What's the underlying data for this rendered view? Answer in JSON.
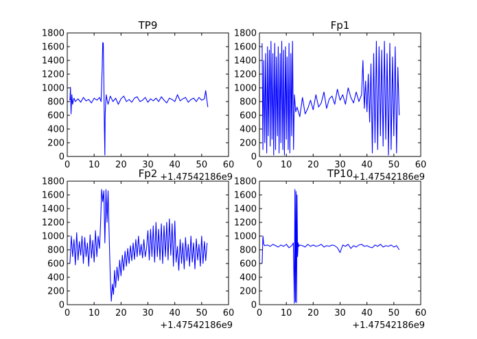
{
  "chart_data": [
    {
      "type": "line",
      "title": "TP9",
      "x_offset_label": "+1.47542186e9",
      "xlim": [
        0,
        60
      ],
      "ylim": [
        0,
        1800
      ],
      "xticks": [
        0,
        10,
        20,
        30,
        40,
        50,
        60
      ],
      "yticks": [
        0,
        200,
        400,
        600,
        800,
        1000,
        1200,
        1400,
        1600,
        1800
      ],
      "series": [
        {
          "name": "TP9",
          "color": "#0000ff",
          "x": [
            1.0,
            1.2,
            1.4,
            1.7,
            2.0,
            2.5,
            3,
            4,
            5,
            6,
            7,
            8,
            9,
            10,
            11,
            12,
            12.6,
            13.0,
            13.2,
            13.4,
            13.6,
            13.8,
            14.0,
            14.1,
            14.3,
            14.5,
            14.8,
            15.2,
            16,
            17,
            18,
            19,
            20,
            21,
            22,
            23,
            24,
            25,
            26,
            27,
            28,
            29,
            30,
            31,
            32,
            33,
            34,
            35,
            36,
            37,
            38,
            39,
            40,
            41,
            42,
            43,
            44,
            45,
            46,
            47,
            48,
            49,
            50,
            51,
            51.5,
            52,
            52.3
          ],
          "y": [
            820,
            1010,
            620,
            900,
            760,
            850,
            800,
            840,
            790,
            860,
            810,
            830,
            780,
            850,
            820,
            860,
            800,
            1300,
            1660,
            1650,
            1100,
            400,
            20,
            600,
            780,
            900,
            820,
            760,
            880,
            800,
            850,
            760,
            840,
            880,
            800,
            830,
            790,
            850,
            870,
            800,
            820,
            860,
            790,
            840,
            810,
            850,
            800,
            870,
            820,
            780,
            850,
            830,
            800,
            900,
            810,
            840,
            860,
            790,
            830,
            850,
            800,
            860,
            820,
            840,
            960,
            800,
            720
          ]
        }
      ]
    },
    {
      "type": "line",
      "title": "Fp1",
      "x_offset_label": "+1.47542186e9",
      "xlim": [
        0,
        60
      ],
      "ylim": [
        0,
        1800
      ],
      "xticks": [
        0,
        10,
        20,
        30,
        40,
        50,
        60
      ],
      "yticks": [
        0,
        200,
        400,
        600,
        800,
        1000,
        1200,
        1400,
        1600,
        1800
      ],
      "series": [
        {
          "name": "Fp1",
          "color": "#0000ff",
          "x": [
            1.0,
            1.3,
            1.6,
            2.0,
            2.3,
            2.7,
            3.0,
            3.3,
            3.7,
            4.0,
            4.3,
            4.7,
            5.0,
            5.3,
            5.7,
            6.0,
            6.3,
            6.7,
            7.0,
            7.3,
            7.7,
            8.0,
            8.3,
            8.7,
            9.0,
            9.3,
            9.7,
            10.0,
            10.3,
            10.7,
            11.0,
            11.3,
            11.7,
            12.0,
            12.3,
            12.7,
            13.0,
            13.5,
            14,
            15,
            16,
            17,
            18,
            19,
            20,
            21,
            22,
            23,
            24,
            25,
            26,
            27,
            28,
            29,
            30,
            31,
            32,
            33,
            34,
            35,
            36,
            37,
            38,
            38.5,
            39,
            39.5,
            40,
            40.5,
            41,
            41.5,
            42,
            42.5,
            43,
            43.5,
            44,
            44.5,
            45,
            45.5,
            46,
            46.5,
            47,
            47.5,
            48,
            48.5,
            49,
            49.5,
            50,
            50.5,
            51,
            51.5,
            52
          ],
          "y": [
            1650,
            100,
            1400,
            200,
            1500,
            50,
            1600,
            300,
            1550,
            150,
            1680,
            250,
            1500,
            20,
            1650,
            100,
            1450,
            300,
            1600,
            50,
            1500,
            200,
            1680,
            100,
            1550,
            20,
            1600,
            250,
            1450,
            100,
            1650,
            50,
            1500,
            300,
            1680,
            100,
            900,
            650,
            720,
            580,
            860,
            620,
            700,
            820,
            680,
            900,
            720,
            780,
            940,
            700,
            840,
            880,
            760,
            980,
            820,
            900,
            760,
            1000,
            860,
            780,
            940,
            800,
            900,
            1400,
            700,
            1100,
            650,
            1200,
            500,
            1350,
            50,
            1500,
            200,
            1680,
            100,
            1600,
            300,
            1550,
            150,
            1680,
            250,
            1500,
            20,
            1650,
            100,
            1450,
            300,
            1600,
            50,
            1300,
            600
          ]
        }
      ]
    },
    {
      "type": "line",
      "title": "Fp2",
      "x_offset_label": "+1.47542186e9",
      "xlim": [
        0,
        60
      ],
      "ylim": [
        0,
        1800
      ],
      "xticks": [
        0,
        10,
        20,
        30,
        40,
        50,
        60
      ],
      "yticks": [
        0,
        200,
        400,
        600,
        800,
        1000,
        1200,
        1400,
        1600,
        1800
      ],
      "series": [
        {
          "name": "Fp2",
          "color": "#0000ff",
          "x": [
            1.0,
            1.5,
            2.0,
            2.5,
            3.0,
            3.5,
            4.0,
            4.5,
            5.0,
            5.5,
            6.0,
            6.5,
            7.0,
            7.5,
            8.0,
            8.5,
            9.0,
            9.5,
            10.0,
            10.5,
            11.0,
            11.5,
            12.0,
            12.4,
            12.8,
            13.2,
            13.6,
            14.0,
            14.4,
            14.8,
            15.2,
            15.6,
            16.0,
            16.4,
            16.8,
            17.2,
            17.6,
            18.0,
            18.5,
            19,
            19.5,
            20,
            20.5,
            21,
            21.5,
            22,
            22.5,
            23,
            23.5,
            24,
            24.5,
            25,
            25.5,
            26,
            26.5,
            27,
            27.5,
            28,
            28.5,
            29,
            29.5,
            30,
            30.5,
            31,
            31.5,
            32,
            32.5,
            33,
            33.5,
            34,
            34.5,
            35,
            35.5,
            36,
            36.5,
            37,
            37.5,
            38,
            38.5,
            39,
            39.5,
            40,
            40.5,
            41,
            41.5,
            42,
            42.5,
            43,
            43.5,
            44,
            44.5,
            45,
            45.5,
            46,
            46.5,
            47,
            47.5,
            48,
            48.5,
            49,
            49.5,
            50,
            50.5,
            51,
            51.5,
            52
          ],
          "y": [
            600,
            1000,
            700,
            950,
            580,
            1050,
            650,
            920,
            720,
            1000,
            600,
            980,
            700,
            900,
            560,
            1020,
            680,
            940,
            620,
            1080,
            700,
            1000,
            820,
            1200,
            1680,
            1500,
            1660,
            900,
            1680,
            1200,
            1660,
            1000,
            400,
            50,
            300,
            150,
            500,
            250,
            550,
            350,
            650,
            420,
            720,
            500,
            780,
            560,
            820,
            600,
            860,
            640,
            900,
            660,
            950,
            700,
            1000,
            720,
            880,
            680,
            950,
            700,
            820,
            1080,
            650,
            1100,
            700,
            1150,
            620,
            1200,
            700,
            1100,
            650,
            1180,
            600,
            1150,
            700,
            1200,
            650,
            1250,
            720,
            1180,
            560,
            1220,
            620,
            850,
            500,
            950,
            600,
            900,
            520,
            980,
            640,
            880,
            560,
            1000,
            620,
            900,
            520,
            960,
            650,
            880,
            560,
            1000,
            600,
            920,
            640,
            900
          ]
        }
      ]
    },
    {
      "type": "line",
      "title": "TP10",
      "x_offset_label": "+1.47542186e9",
      "xlim": [
        0,
        60
      ],
      "ylim": [
        0,
        1800
      ],
      "xticks": [
        0,
        10,
        20,
        30,
        40,
        50,
        60
      ],
      "yticks": [
        0,
        200,
        400,
        600,
        800,
        1000,
        1200,
        1400,
        1600,
        1800
      ],
      "series": [
        {
          "name": "TP10",
          "color": "#0000ff",
          "x": [
            1.0,
            1.3,
            1.6,
            2.0,
            3,
            4,
            5,
            6,
            7,
            8,
            9,
            10,
            11,
            12,
            12.6,
            13.0,
            13.2,
            13.4,
            13.6,
            13.8,
            14.0,
            14.2,
            14.4,
            14.6,
            15,
            16,
            17,
            18,
            19,
            20,
            21,
            22,
            23,
            24,
            25,
            26,
            27,
            28,
            29,
            30,
            31,
            32,
            33,
            34,
            35,
            36,
            37,
            38,
            39,
            40,
            41,
            42,
            43,
            44,
            45,
            46,
            47,
            48,
            49,
            50,
            51,
            52
          ],
          "y": [
            600,
            1000,
            880,
            860,
            870,
            850,
            880,
            860,
            840,
            870,
            850,
            880,
            830,
            860,
            900,
            20,
            1680,
            40,
            1650,
            30,
            1600,
            700,
            900,
            850,
            870,
            860,
            840,
            880,
            850,
            870,
            850,
            860,
            880,
            840,
            860,
            850,
            870,
            860,
            830,
            760,
            870,
            850,
            880,
            820,
            860,
            840,
            870,
            880,
            850,
            860,
            840,
            830,
            870,
            850,
            880,
            840,
            860,
            850,
            870,
            840,
            860,
            800
          ]
        }
      ]
    }
  ]
}
